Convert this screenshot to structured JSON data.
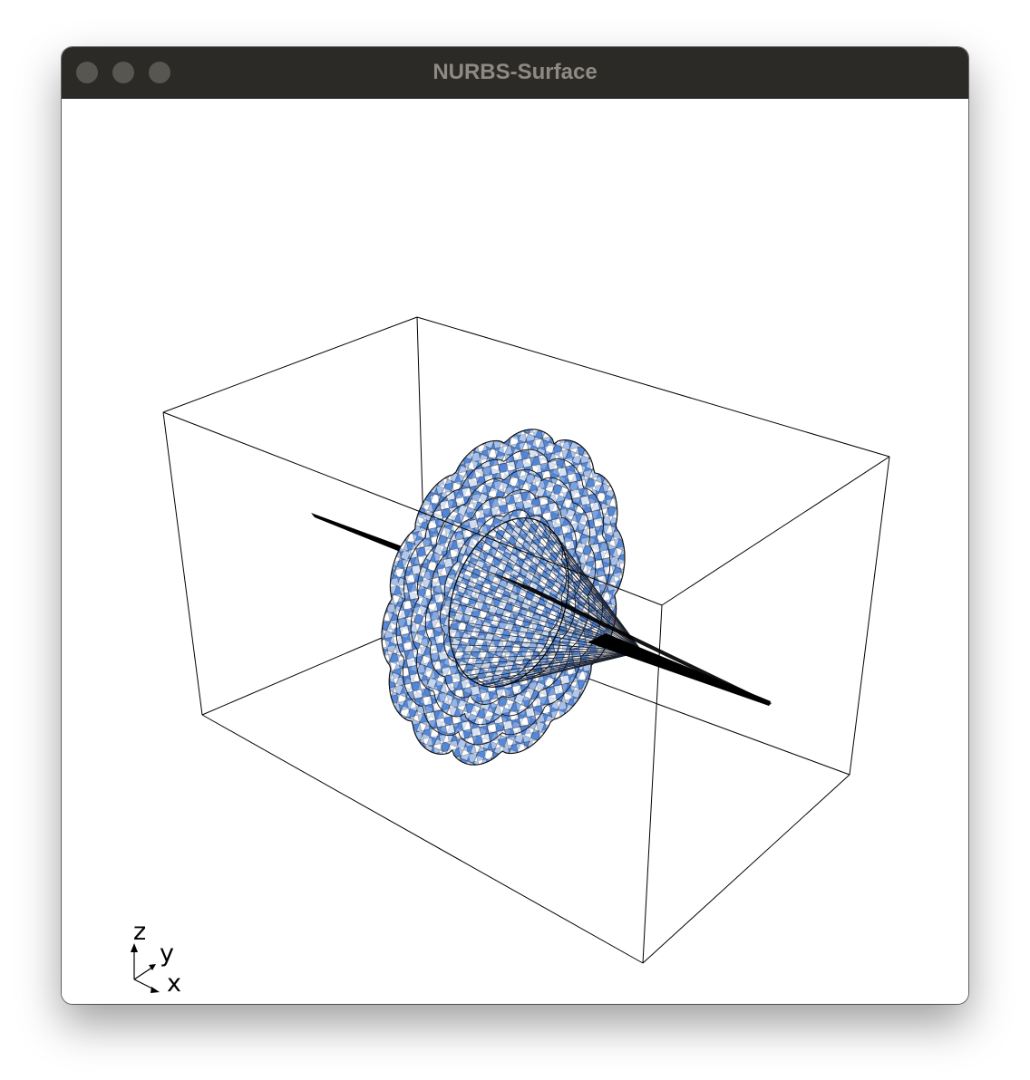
{
  "window": {
    "title": "NURBS-Surface"
  },
  "controls": {
    "close": "close-button",
    "minimize": "minimize-button",
    "zoom": "zoom-button"
  },
  "axes": {
    "x": "x",
    "y": "y",
    "z": "z"
  },
  "colors": {
    "titlebar": "#2c2a26",
    "surface_blue": "#4f82d6",
    "surface_white": "#ffffff",
    "outline": "#000000",
    "background": "#ffffff"
  }
}
